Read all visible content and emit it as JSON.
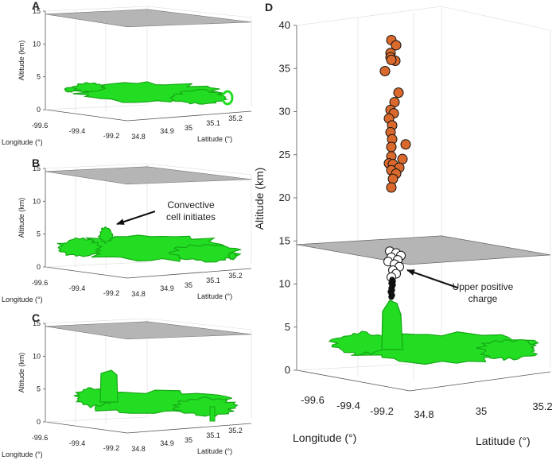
{
  "chart_data": [
    {
      "panel": "A",
      "type": "scatter",
      "title": "",
      "zlabel": "Altitude (km)",
      "xlabel": "Longitude (°)",
      "ylabel": "Latitude (°)",
      "zticks": [
        "0",
        "5",
        "10",
        "15"
      ],
      "xticks": [
        "-99.6",
        "-99.4",
        "-99.2"
      ],
      "yticks": [
        "34.8",
        "34.9",
        "35",
        "35.1",
        "35.2"
      ],
      "zlim": [
        0,
        15
      ],
      "tropopause_km": 14.3,
      "annotations": []
    },
    {
      "panel": "B",
      "type": "scatter",
      "title": "",
      "zlabel": "Altitude (km)",
      "xlabel": "Longitude (°)",
      "ylabel": "Latitude (°)",
      "zticks": [
        "0",
        "5",
        "10",
        "15"
      ],
      "xticks": [
        "-99.6",
        "-99.4",
        "-99.2"
      ],
      "yticks": [
        "34.8",
        "34.9",
        "35",
        "35.1",
        "35.2"
      ],
      "zlim": [
        0,
        15
      ],
      "tropopause_km": 14.3,
      "annotations": [
        {
          "text_lines": [
            "Convective",
            "cell initiates"
          ]
        }
      ]
    },
    {
      "panel": "C",
      "type": "scatter",
      "title": "",
      "zlabel": "Altitude (km)",
      "xlabel": "Longitude (°)",
      "ylabel": "Latitude (°)",
      "zticks": [
        "0",
        "5",
        "10",
        "15"
      ],
      "xticks": [
        "-99.6",
        "-99.4",
        "-99.2"
      ],
      "yticks": [
        "34.8",
        "34.9",
        "35",
        "35.1",
        "35.2"
      ],
      "zlim": [
        0,
        15
      ],
      "tropopause_km": 14.3,
      "annotations": []
    },
    {
      "panel": "D",
      "type": "scatter",
      "title": "",
      "zlabel": "Altitude (km)",
      "xlabel": "Longitude (°)",
      "ylabel": "Latitude (°)",
      "zticks": [
        "0",
        "5",
        "10",
        "15",
        "20",
        "25",
        "30",
        "35",
        "40"
      ],
      "xticks": [
        "-99.6",
        "-99.4",
        "-99.2"
      ],
      "yticks": [
        "34.8",
        "35",
        "35.2"
      ],
      "zlim": [
        0,
        40
      ],
      "tropopause_km": 14.3,
      "annotations": [
        {
          "text_lines": [
            "Upper positive",
            "charge"
          ]
        }
      ],
      "series": [
        {
          "marker_color": "#d9692c",
          "points": [
            {
              "alt": 38.3,
              "dx": 0
            },
            {
              "alt": 37.7,
              "dx": 6
            },
            {
              "alt": 36.8,
              "dx": -1
            },
            {
              "alt": 36.3,
              "dx": -1
            },
            {
              "alt": 35.9,
              "dx": 5
            },
            {
              "alt": 36.0,
              "dx": 0
            },
            {
              "alt": 34.7,
              "dx": -8
            },
            {
              "alt": 32.2,
              "dx": 9
            },
            {
              "alt": 31.1,
              "dx": 4
            },
            {
              "alt": 30.2,
              "dx": -1
            },
            {
              "alt": 29.8,
              "dx": 3
            },
            {
              "alt": 29.2,
              "dx": -3
            },
            {
              "alt": 28.4,
              "dx": 1
            },
            {
              "alt": 27.6,
              "dx": -1
            },
            {
              "alt": 26.8,
              "dx": 1
            },
            {
              "alt": 26.2,
              "dx": 18
            },
            {
              "alt": 25.9,
              "dx": 0
            },
            {
              "alt": 24.8,
              "dx": 0
            },
            {
              "alt": 24.5,
              "dx": 14
            },
            {
              "alt": 24.0,
              "dx": -3
            },
            {
              "alt": 23.9,
              "dx": 2
            },
            {
              "alt": 23.5,
              "dx": 10
            },
            {
              "alt": 23.2,
              "dx": 0
            },
            {
              "alt": 22.8,
              "dx": 6
            },
            {
              "alt": 22.2,
              "dx": 2
            },
            {
              "alt": 21.2,
              "dx": 0
            }
          ]
        },
        {
          "marker_color": "#ffffff",
          "points": [
            {
              "alt": 13.8,
              "dx": -2
            },
            {
              "alt": 13.6,
              "dx": 6
            },
            {
              "alt": 13.3,
              "dx": 12
            },
            {
              "alt": 13.1,
              "dx": 0
            },
            {
              "alt": 12.8,
              "dx": 8
            },
            {
              "alt": 12.6,
              "dx": -4
            },
            {
              "alt": 12.3,
              "dx": 4
            },
            {
              "alt": 12.0,
              "dx": 10
            },
            {
              "alt": 11.6,
              "dx": 2
            },
            {
              "alt": 11.2,
              "dx": 6
            },
            {
              "alt": 10.8,
              "dx": 0
            }
          ]
        },
        {
          "marker_color": "#111111",
          "points": [
            {
              "alt": 10.5,
              "dx": 1
            },
            {
              "alt": 10.3,
              "dx": 2
            },
            {
              "alt": 10.1,
              "dx": 0
            },
            {
              "alt": 9.9,
              "dx": 2
            },
            {
              "alt": 9.7,
              "dx": 1
            },
            {
              "alt": 9.5,
              "dx": 0
            },
            {
              "alt": 9.3,
              "dx": 1
            },
            {
              "alt": 9.1,
              "dx": -1
            },
            {
              "alt": 8.9,
              "dx": 0
            },
            {
              "alt": 8.7,
              "dx": 1
            },
            {
              "alt": 8.5,
              "dx": 0
            }
          ]
        }
      ]
    }
  ],
  "colors": {
    "cloud_surface": "#22dd22",
    "cloud_shadow": "#17a817",
    "tropopause_plane": "#a8a8a8"
  }
}
